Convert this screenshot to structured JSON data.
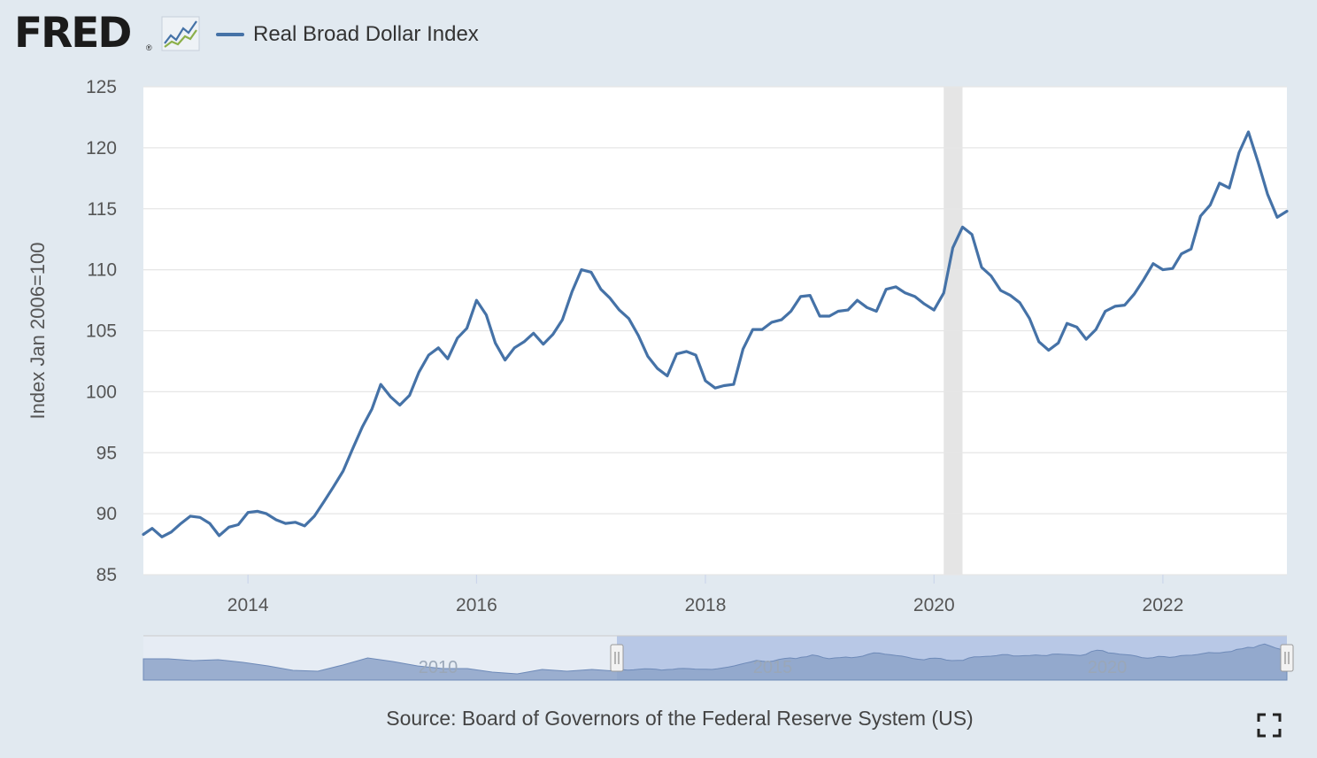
{
  "header": {
    "logo_text": "FRED",
    "logo_reg": "®",
    "logo_icon": "line-chart-icon"
  },
  "legend": {
    "label": "Real Broad Dollar Index",
    "color": "#4572a7"
  },
  "footer": {
    "source": "Source: Board of Governors of the Federal Reserve System (US)",
    "fullscreen_icon": "fullscreen-icon"
  },
  "colors": {
    "line": "#4572a7",
    "recession": "#e5e5e5",
    "grid": "#e6e6e6",
    "navigator_fill": "#8ca3c8",
    "navigator_window": "#b8c8e6",
    "navigator_outside": "#e6ecf4"
  },
  "chart_data": {
    "type": "line",
    "title": "",
    "ylabel": "Index Jan 2006=100",
    "xlabel": "",
    "ylim": [
      85,
      125
    ],
    "xlim": [
      "2013-02-01",
      "2023-02-01"
    ],
    "yticks": [
      85,
      90,
      95,
      100,
      105,
      110,
      115,
      120,
      125
    ],
    "xticks": [
      "2014",
      "2016",
      "2018",
      "2020",
      "2022"
    ],
    "grid": true,
    "legend_position": "top-left",
    "recession": {
      "start": "2020-02-01",
      "end": "2020-04-01"
    },
    "navigator": {
      "tick_labels": [
        "2010",
        "2015",
        "2020"
      ],
      "window_start": "2013-02-01",
      "window_end": "2023-02-01"
    },
    "series": [
      {
        "name": "Real Broad Dollar Index",
        "frequency": "monthly",
        "start": "2013-02",
        "values": [
          88.3,
          88.8,
          88.1,
          88.5,
          89.2,
          89.8,
          89.7,
          89.2,
          88.2,
          88.9,
          89.1,
          90.1,
          90.2,
          90.0,
          89.5,
          89.2,
          89.3,
          89.0,
          89.8,
          91.0,
          92.2,
          93.5,
          95.3,
          97.1,
          98.6,
          100.6,
          99.6,
          98.9,
          99.7,
          101.6,
          103.0,
          103.6,
          102.7,
          104.4,
          105.2,
          107.5,
          106.3,
          104.0,
          102.6,
          103.6,
          104.1,
          104.8,
          103.9,
          104.7,
          105.9,
          108.2,
          110.0,
          109.8,
          108.4,
          107.7,
          106.7,
          106.0,
          104.6,
          102.9,
          101.9,
          101.3,
          103.1,
          103.3,
          103.0,
          100.9,
          100.3,
          100.5,
          100.6,
          103.5,
          105.1,
          105.1,
          105.7,
          105.9,
          106.6,
          107.8,
          107.9,
          106.2,
          106.2,
          106.6,
          106.7,
          107.5,
          106.9,
          106.6,
          108.4,
          108.6,
          108.1,
          107.8,
          107.2,
          106.7,
          108.1,
          111.8,
          113.5,
          112.9,
          110.2,
          109.5,
          108.3,
          107.9,
          107.3,
          106.0,
          104.1,
          103.4,
          104.0,
          105.6,
          105.3,
          104.3,
          105.1,
          106.6,
          107.0,
          107.1,
          108.0,
          109.2,
          110.5,
          110.0,
          110.1,
          111.3,
          111.7,
          114.4,
          115.3,
          117.1,
          116.7,
          119.6,
          121.3,
          118.8,
          116.2,
          114.3,
          114.8
        ]
      }
    ]
  }
}
